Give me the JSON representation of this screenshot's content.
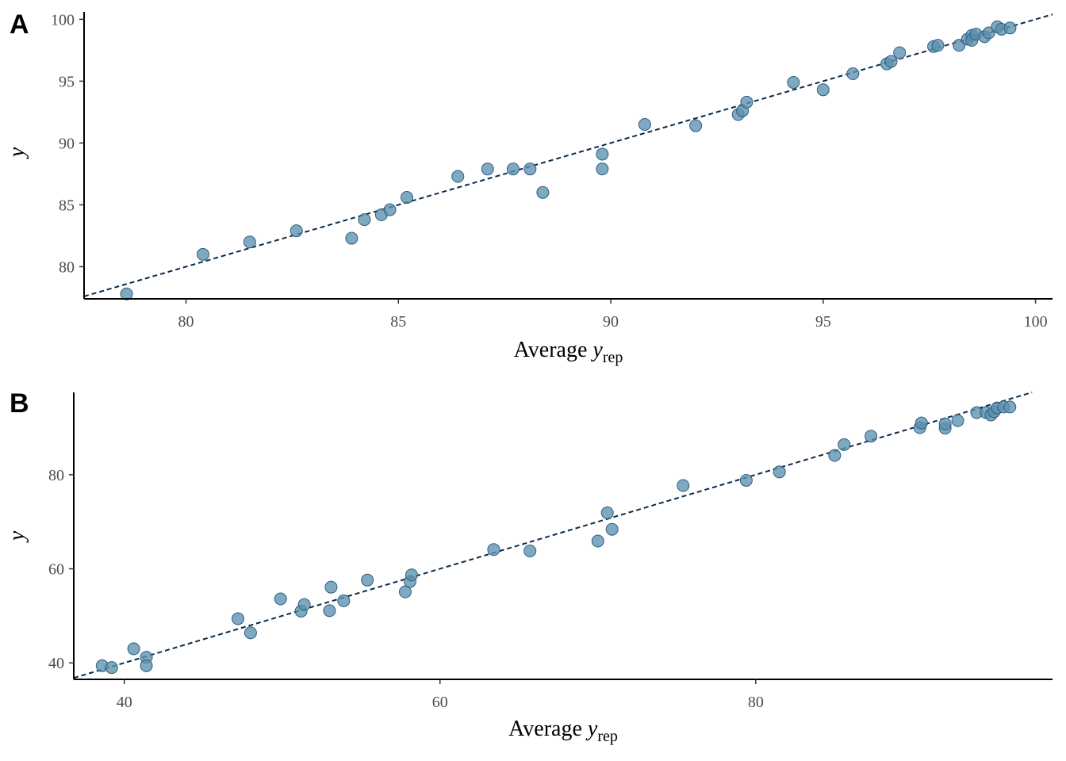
{
  "chart_data": [
    {
      "panel": "A",
      "type": "scatter",
      "xlabel": "Average y",
      "xlabel_sub": "rep",
      "ylabel": "y",
      "xlim": [
        77.6,
        100.4
      ],
      "ylim": [
        77.4,
        100.6
      ],
      "xticks": [
        80,
        85,
        90,
        95,
        100
      ],
      "yticks": [
        80,
        85,
        90,
        95,
        100
      ],
      "reference_line": "identity (y = x), dashed",
      "grid": false,
      "colors": {
        "points": "#5b8fb0",
        "line": "#0b2a4a"
      },
      "points": [
        [
          78.6,
          77.8
        ],
        [
          80.4,
          81.0
        ],
        [
          81.5,
          82.0
        ],
        [
          82.6,
          82.9
        ],
        [
          83.9,
          82.3
        ],
        [
          84.2,
          83.8
        ],
        [
          84.6,
          84.2
        ],
        [
          84.8,
          84.6
        ],
        [
          85.2,
          85.6
        ],
        [
          86.4,
          87.3
        ],
        [
          87.1,
          87.9
        ],
        [
          87.7,
          87.9
        ],
        [
          88.1,
          87.9
        ],
        [
          88.4,
          86.0
        ],
        [
          89.8,
          89.1
        ],
        [
          89.8,
          87.9
        ],
        [
          90.8,
          91.5
        ],
        [
          92.0,
          91.4
        ],
        [
          93.0,
          92.3
        ],
        [
          93.1,
          92.6
        ],
        [
          93.2,
          93.3
        ],
        [
          94.3,
          94.9
        ],
        [
          95.0,
          94.3
        ],
        [
          95.7,
          95.6
        ],
        [
          96.5,
          96.4
        ],
        [
          96.6,
          96.6
        ],
        [
          96.8,
          97.3
        ],
        [
          97.6,
          97.8
        ],
        [
          97.7,
          97.9
        ],
        [
          98.2,
          97.9
        ],
        [
          98.4,
          98.4
        ],
        [
          98.5,
          98.7
        ],
        [
          98.5,
          98.3
        ],
        [
          98.6,
          98.8
        ],
        [
          98.8,
          98.6
        ],
        [
          98.9,
          98.9
        ],
        [
          99.1,
          99.4
        ],
        [
          99.2,
          99.2
        ],
        [
          99.4,
          99.3
        ]
      ]
    },
    {
      "panel": "B",
      "type": "scatter",
      "xlabel": "Average y",
      "xlabel_sub": "rep",
      "ylabel": "y",
      "xlim": [
        36.8,
        98.8
      ],
      "ylim": [
        36.5,
        97.5
      ],
      "xticks": [
        40,
        60,
        80
      ],
      "yticks": [
        40,
        60,
        80
      ],
      "reference_line": "identity (y = x), dashed",
      "grid": false,
      "colors": {
        "points": "#5b8fb0",
        "line": "#0b2a4a"
      },
      "points": [
        [
          38.6,
          39.4
        ],
        [
          39.2,
          39.0
        ],
        [
          40.6,
          43.0
        ],
        [
          41.4,
          41.2
        ],
        [
          41.4,
          39.4
        ],
        [
          47.2,
          49.4
        ],
        [
          48.0,
          46.4
        ],
        [
          49.9,
          53.6
        ],
        [
          51.2,
          51.0
        ],
        [
          51.4,
          52.4
        ],
        [
          53.0,
          51.1
        ],
        [
          53.1,
          56.1
        ],
        [
          53.9,
          53.2
        ],
        [
          55.4,
          57.6
        ],
        [
          57.8,
          55.1
        ],
        [
          58.1,
          57.3
        ],
        [
          58.2,
          58.7
        ],
        [
          63.4,
          64.1
        ],
        [
          65.7,
          63.8
        ],
        [
          70.0,
          65.9
        ],
        [
          70.6,
          71.9
        ],
        [
          70.9,
          68.4
        ],
        [
          75.4,
          77.7
        ],
        [
          79.4,
          78.8
        ],
        [
          81.5,
          80.6
        ],
        [
          85.0,
          84.1
        ],
        [
          85.6,
          86.4
        ],
        [
          87.3,
          88.2
        ],
        [
          90.4,
          90.0
        ],
        [
          90.5,
          91.0
        ],
        [
          92.0,
          89.9
        ],
        [
          92.0,
          90.8
        ],
        [
          92.8,
          91.5
        ],
        [
          94.0,
          93.2
        ],
        [
          94.6,
          93.2
        ],
        [
          94.9,
          92.7
        ],
        [
          95.1,
          93.4
        ],
        [
          95.3,
          94.2
        ],
        [
          95.7,
          94.4
        ],
        [
          96.1,
          94.4
        ]
      ]
    }
  ]
}
